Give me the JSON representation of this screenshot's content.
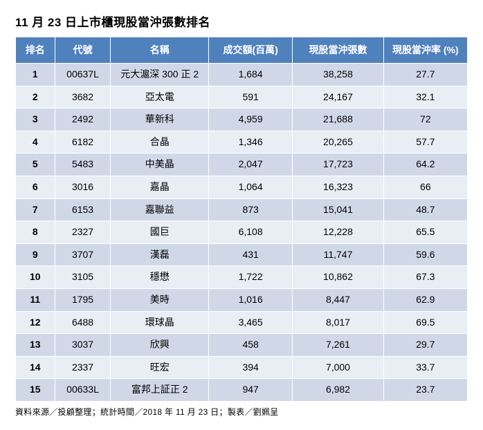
{
  "title": "11 月 23 日上市櫃現股當沖張數排名",
  "footnote": "資料來源／投顧整理；統計時間／2018 年 11 月 23 日；製表／劉姵呈",
  "table": {
    "header_bg": "#4f81bd",
    "header_fg": "#ffffff",
    "row_color_odd": "#d0d8e8",
    "row_color_even": "#e9edf4",
    "columns": [
      {
        "key": "rank",
        "label": "排名"
      },
      {
        "key": "code",
        "label": "代號"
      },
      {
        "key": "name",
        "label": "名稱"
      },
      {
        "key": "turnover",
        "label": "成交額(百萬)"
      },
      {
        "key": "shares",
        "label": "現股當沖張數"
      },
      {
        "key": "pct",
        "label": "現股當沖率 (%)"
      }
    ],
    "rows": [
      {
        "rank": "1",
        "code": "00637L",
        "name": "元大滬深 300 正 2",
        "turnover": "1,684",
        "shares": "38,258",
        "pct": "27.7"
      },
      {
        "rank": "2",
        "code": "3682",
        "name": "亞太電",
        "turnover": "591",
        "shares": "24,167",
        "pct": "32.1"
      },
      {
        "rank": "3",
        "code": "2492",
        "name": "華新科",
        "turnover": "4,959",
        "shares": "21,688",
        "pct": "72"
      },
      {
        "rank": "4",
        "code": "6182",
        "name": "合晶",
        "turnover": "1,346",
        "shares": "20,265",
        "pct": "57.7"
      },
      {
        "rank": "5",
        "code": "5483",
        "name": "中美晶",
        "turnover": "2,047",
        "shares": "17,723",
        "pct": "64.2"
      },
      {
        "rank": "6",
        "code": "3016",
        "name": "嘉晶",
        "turnover": "1,064",
        "shares": "16,323",
        "pct": "66"
      },
      {
        "rank": "7",
        "code": "6153",
        "name": "嘉聯益",
        "turnover": "873",
        "shares": "15,041",
        "pct": "48.7"
      },
      {
        "rank": "8",
        "code": "2327",
        "name": "國巨",
        "turnover": "6,108",
        "shares": "12,228",
        "pct": "65.5"
      },
      {
        "rank": "9",
        "code": "3707",
        "name": "漢磊",
        "turnover": "431",
        "shares": "11,747",
        "pct": "59.6"
      },
      {
        "rank": "10",
        "code": "3105",
        "name": "穩懋",
        "turnover": "1,722",
        "shares": "10,862",
        "pct": "67.3"
      },
      {
        "rank": "11",
        "code": "1795",
        "name": "美時",
        "turnover": "1,016",
        "shares": "8,447",
        "pct": "62.9"
      },
      {
        "rank": "12",
        "code": "6488",
        "name": "環球晶",
        "turnover": "3,465",
        "shares": "8,017",
        "pct": "69.5"
      },
      {
        "rank": "13",
        "code": "3037",
        "name": "欣興",
        "turnover": "458",
        "shares": "7,261",
        "pct": "29.7"
      },
      {
        "rank": "14",
        "code": "2337",
        "name": "旺宏",
        "turnover": "394",
        "shares": "7,000",
        "pct": "33.7"
      },
      {
        "rank": "15",
        "code": "00633L",
        "name": "富邦上証正 2",
        "turnover": "947",
        "shares": "6,982",
        "pct": "23.7"
      }
    ]
  }
}
